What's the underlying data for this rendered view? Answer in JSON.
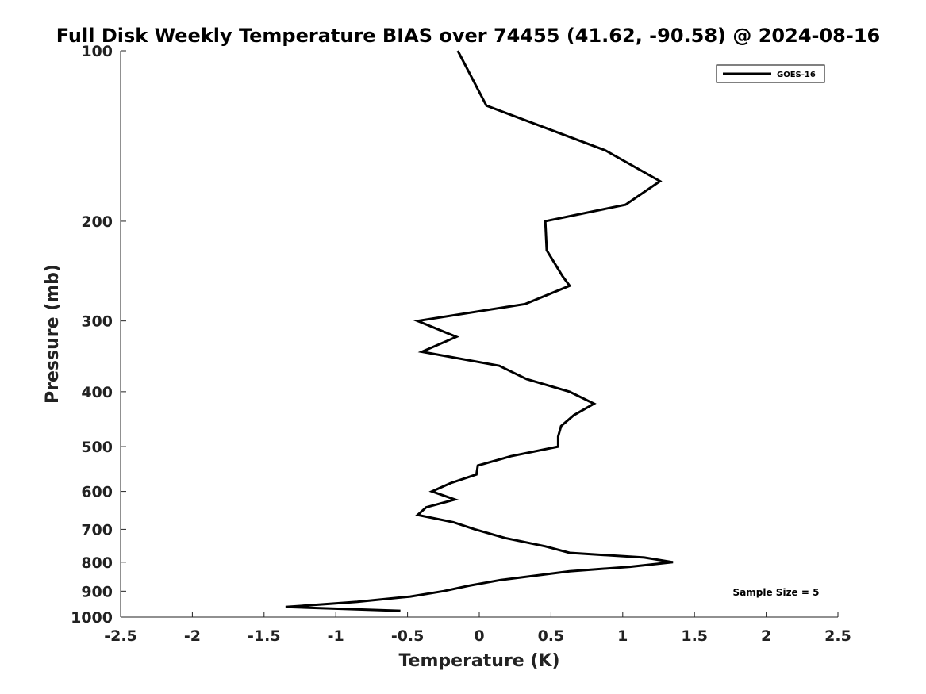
{
  "chart_data": {
    "type": "line",
    "title": "Full Disk Weekly Temperature BIAS over 74455 (41.62, -90.58) @ 2024-08-16",
    "xlabel": "Temperature (K)",
    "ylabel": "Pressure (mb)",
    "xlim": [
      -2.5,
      2.5
    ],
    "ylim": [
      1000,
      100
    ],
    "yscale": "log",
    "y_reversed": true,
    "grid": false,
    "xticks": [
      -2.5,
      -2,
      -1.5,
      -1,
      -0.5,
      0,
      0.5,
      1,
      1.5,
      2,
      2.5
    ],
    "xtick_labels": [
      "-2.5",
      "-2",
      "-1.5",
      "-1",
      "-0.5",
      "0",
      "0.5",
      "1",
      "1.5",
      "2",
      "2.5"
    ],
    "yticks": [
      100,
      200,
      300,
      400,
      500,
      600,
      700,
      800,
      900,
      1000
    ],
    "ytick_labels": [
      "100",
      "200",
      "300",
      "400",
      "500",
      "600",
      "700",
      "800",
      "900",
      "1000"
    ],
    "legend": {
      "placement": "top-right",
      "entries": [
        "GOES-16"
      ]
    },
    "annotation": "Sample Size = 5",
    "series": [
      {
        "name": "GOES-16",
        "color": "#000000",
        "points": [
          {
            "x": -0.15,
            "y": 100
          },
          {
            "x": 0.05,
            "y": 125
          },
          {
            "x": 0.88,
            "y": 150
          },
          {
            "x": 1.26,
            "y": 170
          },
          {
            "x": 1.02,
            "y": 187
          },
          {
            "x": 0.46,
            "y": 200
          },
          {
            "x": 0.47,
            "y": 225
          },
          {
            "x": 0.58,
            "y": 250
          },
          {
            "x": 0.63,
            "y": 260
          },
          {
            "x": 0.32,
            "y": 280
          },
          {
            "x": -0.43,
            "y": 300
          },
          {
            "x": -0.16,
            "y": 320
          },
          {
            "x": -0.4,
            "y": 340
          },
          {
            "x": 0.14,
            "y": 360
          },
          {
            "x": 0.33,
            "y": 380
          },
          {
            "x": 0.63,
            "y": 400
          },
          {
            "x": 0.8,
            "y": 420
          },
          {
            "x": 0.66,
            "y": 440
          },
          {
            "x": 0.57,
            "y": 460
          },
          {
            "x": 0.55,
            "y": 480
          },
          {
            "x": 0.55,
            "y": 500
          },
          {
            "x": 0.22,
            "y": 520
          },
          {
            "x": -0.01,
            "y": 540
          },
          {
            "x": -0.02,
            "y": 560
          },
          {
            "x": -0.2,
            "y": 580
          },
          {
            "x": -0.33,
            "y": 600
          },
          {
            "x": -0.17,
            "y": 620
          },
          {
            "x": -0.37,
            "y": 640
          },
          {
            "x": -0.43,
            "y": 660
          },
          {
            "x": -0.18,
            "y": 680
          },
          {
            "x": -0.03,
            "y": 700
          },
          {
            "x": 0.18,
            "y": 725
          },
          {
            "x": 0.46,
            "y": 750
          },
          {
            "x": 0.63,
            "y": 770
          },
          {
            "x": 1.15,
            "y": 785
          },
          {
            "x": 1.35,
            "y": 800
          },
          {
            "x": 1.05,
            "y": 815
          },
          {
            "x": 0.63,
            "y": 830
          },
          {
            "x": 0.15,
            "y": 860
          },
          {
            "x": -0.07,
            "y": 880
          },
          {
            "x": -0.25,
            "y": 900
          },
          {
            "x": -0.48,
            "y": 920
          },
          {
            "x": -0.85,
            "y": 940
          },
          {
            "x": -1.35,
            "y": 960
          },
          {
            "x": -0.55,
            "y": 975
          }
        ]
      }
    ]
  }
}
